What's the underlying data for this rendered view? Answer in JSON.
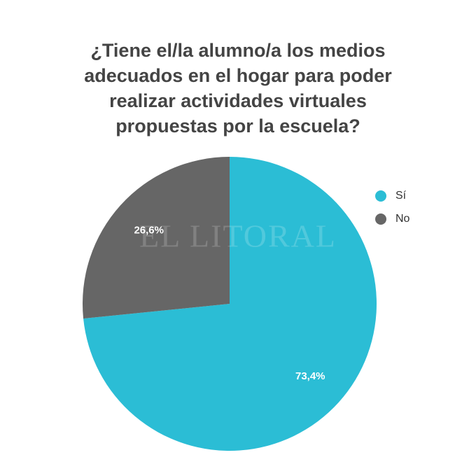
{
  "chart_data": {
    "type": "pie",
    "title": "¿Tiene el/la alumno/a los medios\nadecuados en el hogar para poder\nrealizar actividades virtuales\npropuestas por la escuela?",
    "categories": [
      "Sí",
      "No"
    ],
    "values": [
      73.4,
      26.6
    ],
    "value_labels": [
      "73,4%",
      "26,6%"
    ],
    "colors": [
      "#2bbdd5",
      "#666666"
    ],
    "legend": "right",
    "watermark": "EL LITORAL"
  }
}
